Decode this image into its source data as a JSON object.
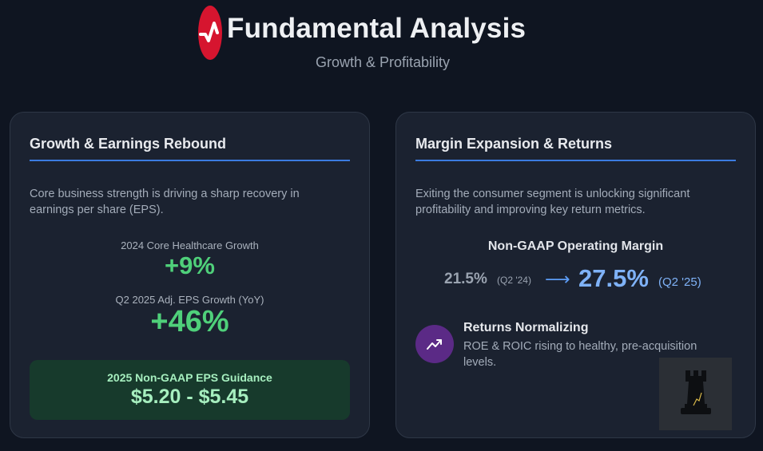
{
  "header": {
    "title": "Fundamental Analysis",
    "subtitle": "Growth & Profitability",
    "logo_icon": "red-pulse-logo-icon",
    "brand_color": "#d6152f"
  },
  "growth_card": {
    "title": "Growth & Earnings Rebound",
    "description": "Core business strength is driving a sharp recovery in earnings per share (EPS).",
    "metrics": [
      {
        "label": "2024 Core Healthcare Growth",
        "value": "+9%"
      },
      {
        "label": "Q2 2025 Adj. EPS Growth (YoY)",
        "value": "+46%"
      }
    ],
    "guidance": {
      "label": "2025 Non-GAAP EPS Guidance",
      "value": "$5.20 - $5.45"
    },
    "accent_color": "#4fd07a"
  },
  "margin_card": {
    "title": "Margin Expansion & Returns",
    "description": "Exiting the consumer segment is unlocking significant profitability and improving key return metrics.",
    "margin": {
      "title": "Non-GAAP Operating Margin",
      "old_value": "21.5%",
      "old_period": "(Q2 '24)",
      "arrow": "⟶",
      "new_value": "27.5%",
      "new_period": "(Q2 '25)"
    },
    "returns": {
      "icon": "trend-up-icon",
      "title": "Returns Normalizing",
      "description": "ROE & ROIC rising to healthy, pre-acquisition levels."
    },
    "decoration_icon": "chess-rook-icon",
    "accent_color": "#7fb2f7"
  }
}
